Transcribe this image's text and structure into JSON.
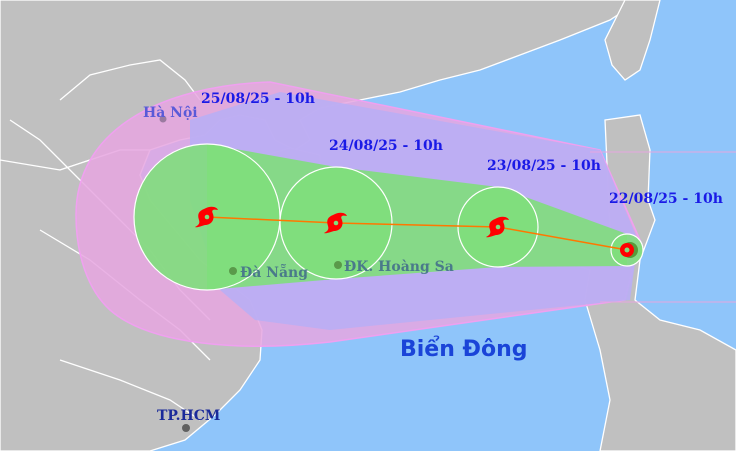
{
  "map": {
    "sea_name": "Biển Đông",
    "cities": {
      "hanoi": "Hà Nội",
      "danang": "Đà Nẵng",
      "hoangsa": "ĐK. Hoàng Sa",
      "hcm": "TP.HCM"
    },
    "forecast_times": [
      "22/08/25 - 10h",
      "23/08/25 - 10h",
      "24/08/25 - 10h",
      "25/08/25 - 10h"
    ],
    "colors": {
      "sea": "#8fc5fa",
      "land": "#c0c0c0",
      "outer_risk_zone": "#e6a6e0",
      "inner_risk_zone": "#b9aef4",
      "strong_wind_cone": "#80de7c",
      "track_line": "#ff7700",
      "storm_icon": "#ff0000",
      "date_label": "#1a1ae6"
    },
    "icons": [
      "storm-icon",
      "city-dot"
    ]
  }
}
